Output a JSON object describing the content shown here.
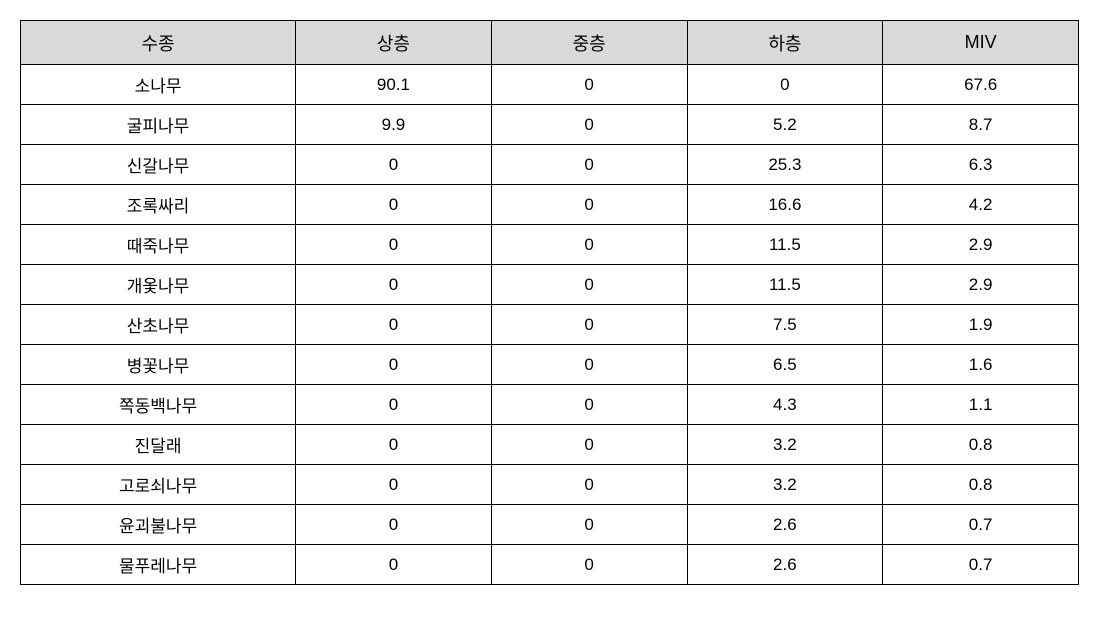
{
  "table": {
    "type": "table",
    "background_color": "#ffffff",
    "header_background_color": "#d9d9d9",
    "border_color": "#000000",
    "font_size": 17,
    "header_font_size": 18,
    "columns": [
      {
        "label": "수종",
        "width": "26%",
        "align": "center"
      },
      {
        "label": "상층",
        "width": "18.5%",
        "align": "center"
      },
      {
        "label": "중층",
        "width": "18.5%",
        "align": "center"
      },
      {
        "label": "하층",
        "width": "18.5%",
        "align": "center"
      },
      {
        "label": "MIV",
        "width": "18.5%",
        "align": "center"
      }
    ],
    "rows": [
      {
        "species": "소나무",
        "upper": "90.1",
        "middle": "0",
        "lower": "0",
        "miv": "67.6"
      },
      {
        "species": "굴피나무",
        "upper": "9.9",
        "middle": "0",
        "lower": "5.2",
        "miv": "8.7"
      },
      {
        "species": "신갈나무",
        "upper": "0",
        "middle": "0",
        "lower": "25.3",
        "miv": "6.3"
      },
      {
        "species": "조록싸리",
        "upper": "0",
        "middle": "0",
        "lower": "16.6",
        "miv": "4.2"
      },
      {
        "species": "때죽나무",
        "upper": "0",
        "middle": "0",
        "lower": "11.5",
        "miv": "2.9"
      },
      {
        "species": "개옻나무",
        "upper": "0",
        "middle": "0",
        "lower": "11.5",
        "miv": "2.9"
      },
      {
        "species": "산초나무",
        "upper": "0",
        "middle": "0",
        "lower": "7.5",
        "miv": "1.9"
      },
      {
        "species": "병꽃나무",
        "upper": "0",
        "middle": "0",
        "lower": "6.5",
        "miv": "1.6"
      },
      {
        "species": "쪽동백나무",
        "upper": "0",
        "middle": "0",
        "lower": "4.3",
        "miv": "1.1"
      },
      {
        "species": "진달래",
        "upper": "0",
        "middle": "0",
        "lower": "3.2",
        "miv": "0.8"
      },
      {
        "species": "고로쇠나무",
        "upper": "0",
        "middle": "0",
        "lower": "3.2",
        "miv": "0.8"
      },
      {
        "species": "윤괴불나무",
        "upper": "0",
        "middle": "0",
        "lower": "2.6",
        "miv": "0.7"
      },
      {
        "species": "물푸레나무",
        "upper": "0",
        "middle": "0",
        "lower": "2.6",
        "miv": "0.7"
      }
    ]
  }
}
